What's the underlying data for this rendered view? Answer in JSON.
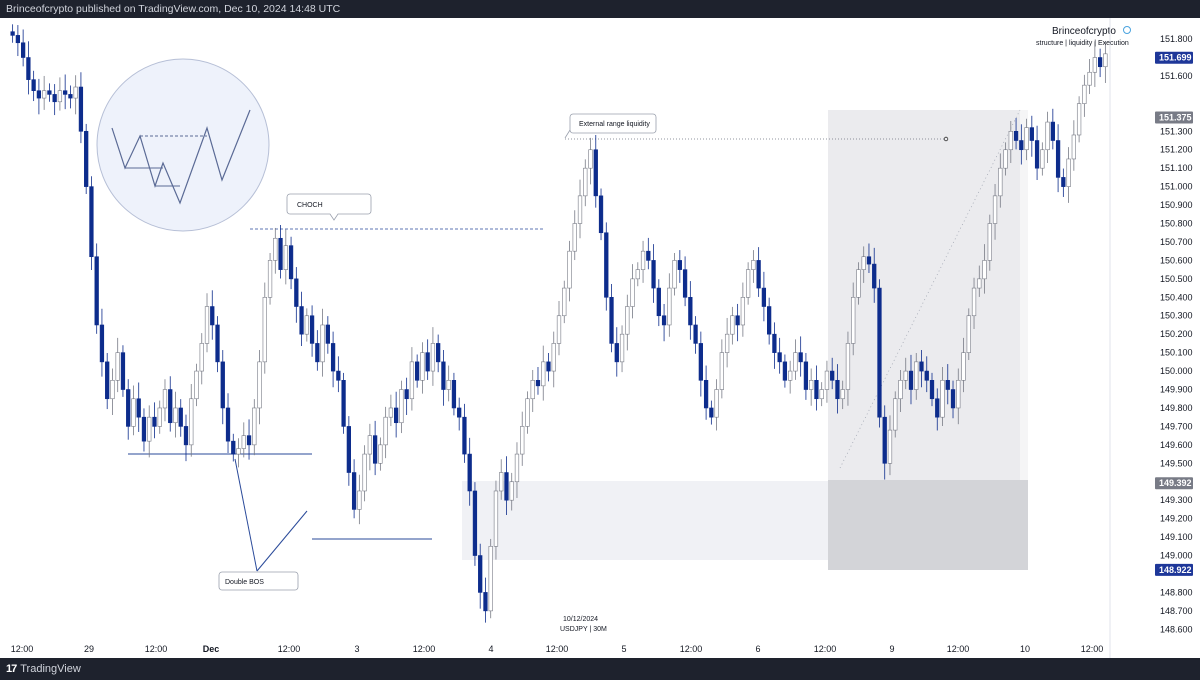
{
  "header": {
    "published_text": "Brinceofcrypto published on TradingView.com, Dec 10, 2024 14:48 UTC"
  },
  "footer": {
    "logo": "17",
    "brand": "TradingView"
  },
  "watermark": {
    "name": "Brinceofcrypto",
    "tagline": "structure | liquidity | Execution"
  },
  "symbol_info": {
    "date": "10/12/2024",
    "symbol": "USDJPY | 30M"
  },
  "annotations": {
    "choch": "CHOCH",
    "external_liquidity": "External range liquidity",
    "double_bos": "Double BOS"
  },
  "colors": {
    "up": "#787b86",
    "down": "#0d2c8c",
    "level_line": "#2a4a9a",
    "zone": "#e8e9ee",
    "zone_dark": "#d1d3d8",
    "price_tag": "#1e3799",
    "axis_bg": "#ffffff"
  },
  "chart_data": {
    "type": "candlestick",
    "title": "",
    "xlabel": "",
    "ylabel": "",
    "ylim": [
      148.58,
      151.86
    ],
    "grid": false,
    "y_ticks": [
      "148.600",
      "148.700",
      "148.800",
      "149.000",
      "149.100",
      "149.200",
      "149.300",
      "149.500",
      "149.600",
      "149.700",
      "149.800",
      "149.900",
      "150.000",
      "150.100",
      "150.200",
      "150.300",
      "150.400",
      "150.500",
      "150.600",
      "150.700",
      "150.800",
      "150.900",
      "151.000",
      "151.100",
      "151.200",
      "151.300",
      "151.600",
      "151.700",
      "151.800"
    ],
    "x_ticks": [
      "12:00",
      "29",
      "12:00",
      "Dec",
      "12:00",
      "3",
      "12:00",
      "4",
      "12:00",
      "5",
      "12:00",
      "6",
      "12:00",
      "9",
      "12:00",
      "10",
      "12:00"
    ],
    "price_tags": [
      {
        "label": "151.699",
        "value": 151.699,
        "style": "current"
      },
      {
        "label": "151.375",
        "value": 151.375,
        "style": "level"
      },
      {
        "label": "149.392",
        "value": 149.392,
        "style": "level"
      },
      {
        "label": "148.922",
        "value": 148.922,
        "style": "current"
      }
    ],
    "close_series": [
      151.82,
      151.78,
      151.7,
      151.58,
      151.52,
      151.48,
      151.52,
      151.5,
      151.46,
      151.52,
      151.5,
      151.48,
      151.54,
      151.3,
      151.0,
      150.62,
      150.25,
      150.05,
      149.85,
      149.95,
      150.1,
      149.9,
      149.7,
      149.85,
      149.75,
      149.62,
      149.75,
      149.7,
      149.8,
      149.9,
      149.72,
      149.8,
      149.7,
      149.6,
      149.85,
      150.0,
      150.15,
      150.35,
      150.25,
      150.05,
      149.8,
      149.62,
      149.55,
      149.58,
      149.65,
      149.6,
      149.8,
      150.05,
      150.4,
      150.6,
      150.72,
      150.55,
      150.68,
      150.5,
      150.35,
      150.2,
      150.3,
      150.15,
      150.05,
      150.25,
      150.15,
      150.0,
      149.95,
      149.7,
      149.45,
      149.25,
      149.35,
      149.55,
      149.65,
      149.5,
      149.6,
      149.75,
      149.8,
      149.72,
      149.9,
      149.85,
      150.05,
      149.95,
      150.1,
      150.0,
      150.15,
      150.05,
      149.9,
      149.95,
      149.8,
      149.75,
      149.55,
      149.35,
      149.0,
      148.8,
      148.7,
      149.05,
      149.35,
      149.45,
      149.3,
      149.4,
      149.55,
      149.7,
      149.85,
      149.95,
      149.92,
      150.05,
      150.0,
      150.15,
      150.3,
      150.45,
      150.65,
      150.8,
      150.95,
      151.1,
      151.2,
      150.95,
      150.75,
      150.4,
      150.15,
      150.05,
      150.2,
      150.35,
      150.5,
      150.55,
      150.65,
      150.6,
      150.45,
      150.3,
      150.25,
      150.45,
      150.6,
      150.55,
      150.4,
      150.25,
      150.15,
      149.95,
      149.8,
      149.75,
      149.9,
      150.1,
      150.2,
      150.3,
      150.25,
      150.4,
      150.55,
      150.6,
      150.45,
      150.35,
      150.2,
      150.1,
      150.05,
      149.95,
      150.0,
      150.1,
      150.05,
      149.9,
      149.95,
      149.85,
      149.9,
      150.0,
      149.95,
      149.85,
      149.9,
      150.15,
      150.4,
      150.55,
      150.62,
      150.58,
      150.45,
      149.75,
      149.5,
      149.68,
      149.85,
      149.95,
      150.0,
      149.9,
      150.05,
      150.0,
      149.95,
      149.85,
      149.75,
      149.95,
      149.9,
      149.8,
      149.95,
      150.1,
      150.3,
      150.45,
      150.5,
      150.6,
      150.8,
      150.95,
      151.1,
      151.2,
      151.3,
      151.25,
      151.2,
      151.32,
      151.25,
      151.1,
      151.2,
      151.35,
      151.25,
      151.05,
      151.0,
      151.15,
      151.28,
      151.45,
      151.55,
      151.62,
      151.7,
      151.65,
      151.72
    ]
  }
}
